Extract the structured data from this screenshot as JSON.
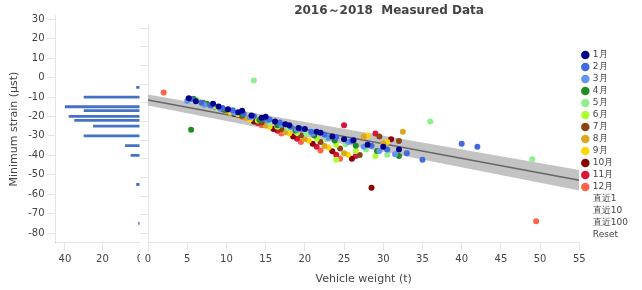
{
  "chart_data": [
    {
      "type": "bar",
      "orientation": "horizontal",
      "y": [
        -5,
        -10,
        -15,
        -17,
        -20,
        -22,
        -25,
        -30,
        -35,
        -40,
        -55,
        -75
      ],
      "values": [
        2,
        30,
        40,
        30,
        38,
        35,
        25,
        30,
        8,
        5,
        2,
        1
      ],
      "color": "#4472C4",
      "ylabel": "Minimum strain (μst)",
      "ylim": [
        -85,
        32
      ],
      "yticks": [
        30,
        20,
        10,
        0,
        -10,
        -20,
        -30,
        -40,
        -50,
        -60,
        -70,
        -80
      ],
      "xlim": [
        45,
        0
      ],
      "xticks": [
        0,
        20,
        40
      ],
      "grid": false
    },
    {
      "type": "scatter",
      "title": "2016～2018  Measured Data",
      "xlabel": "Vehicle weight (t)",
      "xlim": [
        0,
        55
      ],
      "xticks": [
        0,
        5,
        10,
        15,
        20,
        25,
        30,
        35,
        40,
        45,
        50,
        55
      ],
      "ylim": [
        -85,
        32
      ],
      "yticks": [
        30,
        20,
        10,
        0,
        -10,
        -20,
        -30,
        -40,
        -50,
        -60,
        -70,
        -80
      ],
      "tick_labels": "x",
      "grid": false,
      "legend": "right",
      "series": [
        {
          "name": "1月",
          "color": "#00008B",
          "marker": "circle",
          "x": [
            5.2,
            6.1,
            8.3,
            9.0,
            10.2,
            11.5,
            12.0,
            13.2,
            14.5,
            15.0,
            16.2,
            17.5,
            18.0,
            19.2,
            20.0,
            21.5,
            22.0,
            23.5,
            25.0,
            26.2,
            28.0,
            30.0,
            32.0
          ],
          "values": [
            -7.5,
            -9.2,
            -10.5,
            -12.0,
            -13.5,
            -15.0,
            -14.2,
            -16.8,
            -18.0,
            -17.5,
            -20.0,
            -21.5,
            -22.0,
            -23.5,
            -24.0,
            -25.5,
            -26.0,
            -28.0,
            -29.5,
            -30.0,
            -32.5,
            -33.5,
            -35.0
          ]
        },
        {
          "name": "2月",
          "color": "#4169E1",
          "marker": "circle",
          "x": [
            5.5,
            6.8,
            8.0,
            9.5,
            10.8,
            12.2,
            13.5,
            14.8,
            15.5,
            16.8,
            18.2,
            19.5,
            20.8,
            22.5,
            24.0,
            26.0,
            28.5,
            30.5,
            33.0,
            35.0,
            40.0,
            42.0
          ],
          "values": [
            -8.0,
            -10.0,
            -11.5,
            -12.8,
            -14.0,
            -15.8,
            -17.2,
            -18.5,
            -19.0,
            -20.5,
            -22.8,
            -24.0,
            -25.5,
            -27.0,
            -28.5,
            -30.5,
            -33.0,
            -35.0,
            -37.0,
            -40.5,
            -32.0,
            -33.5
          ]
        },
        {
          "name": "3月",
          "color": "#6495ED",
          "marker": "circle",
          "x": [
            5.0,
            7.2,
            9.2,
            11.0,
            13.0,
            15.2,
            17.0,
            19.0,
            21.0,
            23.0,
            25.5,
            27.5,
            29.5,
            31.5
          ],
          "values": [
            -9.0,
            -11.0,
            -13.2,
            -15.5,
            -17.8,
            -19.5,
            -21.8,
            -24.5,
            -26.5,
            -28.8,
            -31.0,
            -33.5,
            -35.8,
            -37.5
          ]
        },
        {
          "name": "4月",
          "color": "#228B22",
          "marker": "circle",
          "x": [
            5.8,
            7.5,
            9.8,
            12.0,
            14.2,
            16.5,
            18.8,
            21.2,
            23.8,
            26.5,
            29.2,
            32.0,
            5.5
          ],
          "values": [
            -7.8,
            -10.5,
            -13.8,
            -16.5,
            -19.2,
            -22.0,
            -24.8,
            -27.5,
            -30.2,
            -33.0,
            -35.8,
            -38.5,
            -24.5
          ]
        },
        {
          "name": "5月",
          "color": "#90EE90",
          "marker": "circle",
          "x": [
            6.2,
            8.5,
            10.8,
            13.2,
            15.5,
            17.8,
            20.2,
            22.8,
            25.2,
            27.8,
            30.5,
            13.5,
            36.0,
            49.0
          ],
          "values": [
            -8.5,
            -11.8,
            -14.8,
            -17.8,
            -20.8,
            -23.5,
            -26.5,
            -29.5,
            -32.2,
            -35.0,
            -37.8,
            2.0,
            -20.0,
            -40.2
          ]
        },
        {
          "name": "6月",
          "color": "#ADFF2F",
          "marker": "circle",
          "x": [
            6.5,
            9.0,
            11.5,
            14.0,
            16.5,
            19.0,
            21.5,
            24.0,
            26.5,
            29.0,
            24.0
          ],
          "values": [
            -9.5,
            -13.0,
            -16.2,
            -19.5,
            -22.8,
            -26.0,
            -29.2,
            -32.5,
            -35.8,
            -38.5,
            -40.5
          ]
        },
        {
          "name": "7月",
          "color": "#8B4513",
          "marker": "circle",
          "x": [
            7.0,
            9.5,
            12.0,
            14.5,
            17.0,
            19.5,
            22.0,
            24.5,
            27.0,
            29.5,
            32.0
          ],
          "values": [
            -10.0,
            -13.5,
            -17.0,
            -20.5,
            -24.0,
            -27.5,
            -31.0,
            -34.5,
            -38.0,
            -28.0,
            -30.5
          ]
        },
        {
          "name": "8月",
          "color": "#DAA520",
          "marker": "circle",
          "x": [
            7.5,
            10.0,
            12.5,
            15.0,
            17.5,
            20.0,
            22.5,
            25.0,
            27.5,
            30.0,
            32.5
          ],
          "values": [
            -10.5,
            -14.5,
            -18.2,
            -22.0,
            -25.8,
            -29.5,
            -33.2,
            -37.0,
            -28.2,
            -31.8,
            -25.5
          ]
        },
        {
          "name": "9月",
          "color": "#FFD700",
          "marker": "circle",
          "x": [
            8.0,
            10.5,
            13.0,
            15.5,
            18.0,
            20.5,
            23.0,
            25.5,
            28.0,
            30.5
          ],
          "values": [
            -11.5,
            -15.2,
            -19.0,
            -22.8,
            -26.5,
            -30.2,
            -34.0,
            -37.8,
            -27.5,
            -31.0
          ]
        },
        {
          "name": "10月",
          "color": "#8B0000",
          "marker": "circle",
          "x": [
            8.5,
            11.0,
            13.5,
            16.0,
            18.5,
            21.0,
            23.5,
            26.0,
            28.5,
            31.0
          ],
          "values": [
            -12.0,
            -16.0,
            -20.0,
            -24.0,
            -28.0,
            -32.0,
            -36.0,
            -40.0,
            -55.5,
            -29.5
          ]
        },
        {
          "name": "11月",
          "color": "#DC143C",
          "marker": "circle",
          "x": [
            9.0,
            11.5,
            14.0,
            16.5,
            19.0,
            21.5,
            24.0,
            26.5,
            29.0,
            25.0
          ],
          "values": [
            -12.5,
            -16.5,
            -20.8,
            -25.0,
            -29.2,
            -33.5,
            -37.8,
            -38.5,
            -26.5,
            -22.0
          ]
        },
        {
          "name": "12月",
          "color": "#FF6347",
          "marker": "circle",
          "x": [
            2.0,
            9.5,
            12.0,
            14.5,
            17.0,
            19.5,
            22.0,
            24.5,
            49.5
          ],
          "values": [
            -4.5,
            -13.0,
            -17.5,
            -22.0,
            -26.5,
            -31.0,
            -35.5,
            -40.0,
            -73.5
          ]
        },
        {
          "name": "直近1",
          "x": [],
          "values": []
        },
        {
          "name": "直近10",
          "x": [],
          "values": []
        },
        {
          "name": "直近100",
          "x": [],
          "values": []
        },
        {
          "name": "Reset",
          "x": [],
          "values": []
        },
        {
          "type": "line",
          "color": "#666666",
          "x": [
            0,
            55
          ],
          "values": [
            -8.5,
            -51.5
          ],
          "band_lower": [
            -11.5,
            -57.0
          ],
          "band_upper": [
            -5.5,
            -46.0
          ],
          "band_color": "#aaaaaa"
        }
      ]
    }
  ]
}
